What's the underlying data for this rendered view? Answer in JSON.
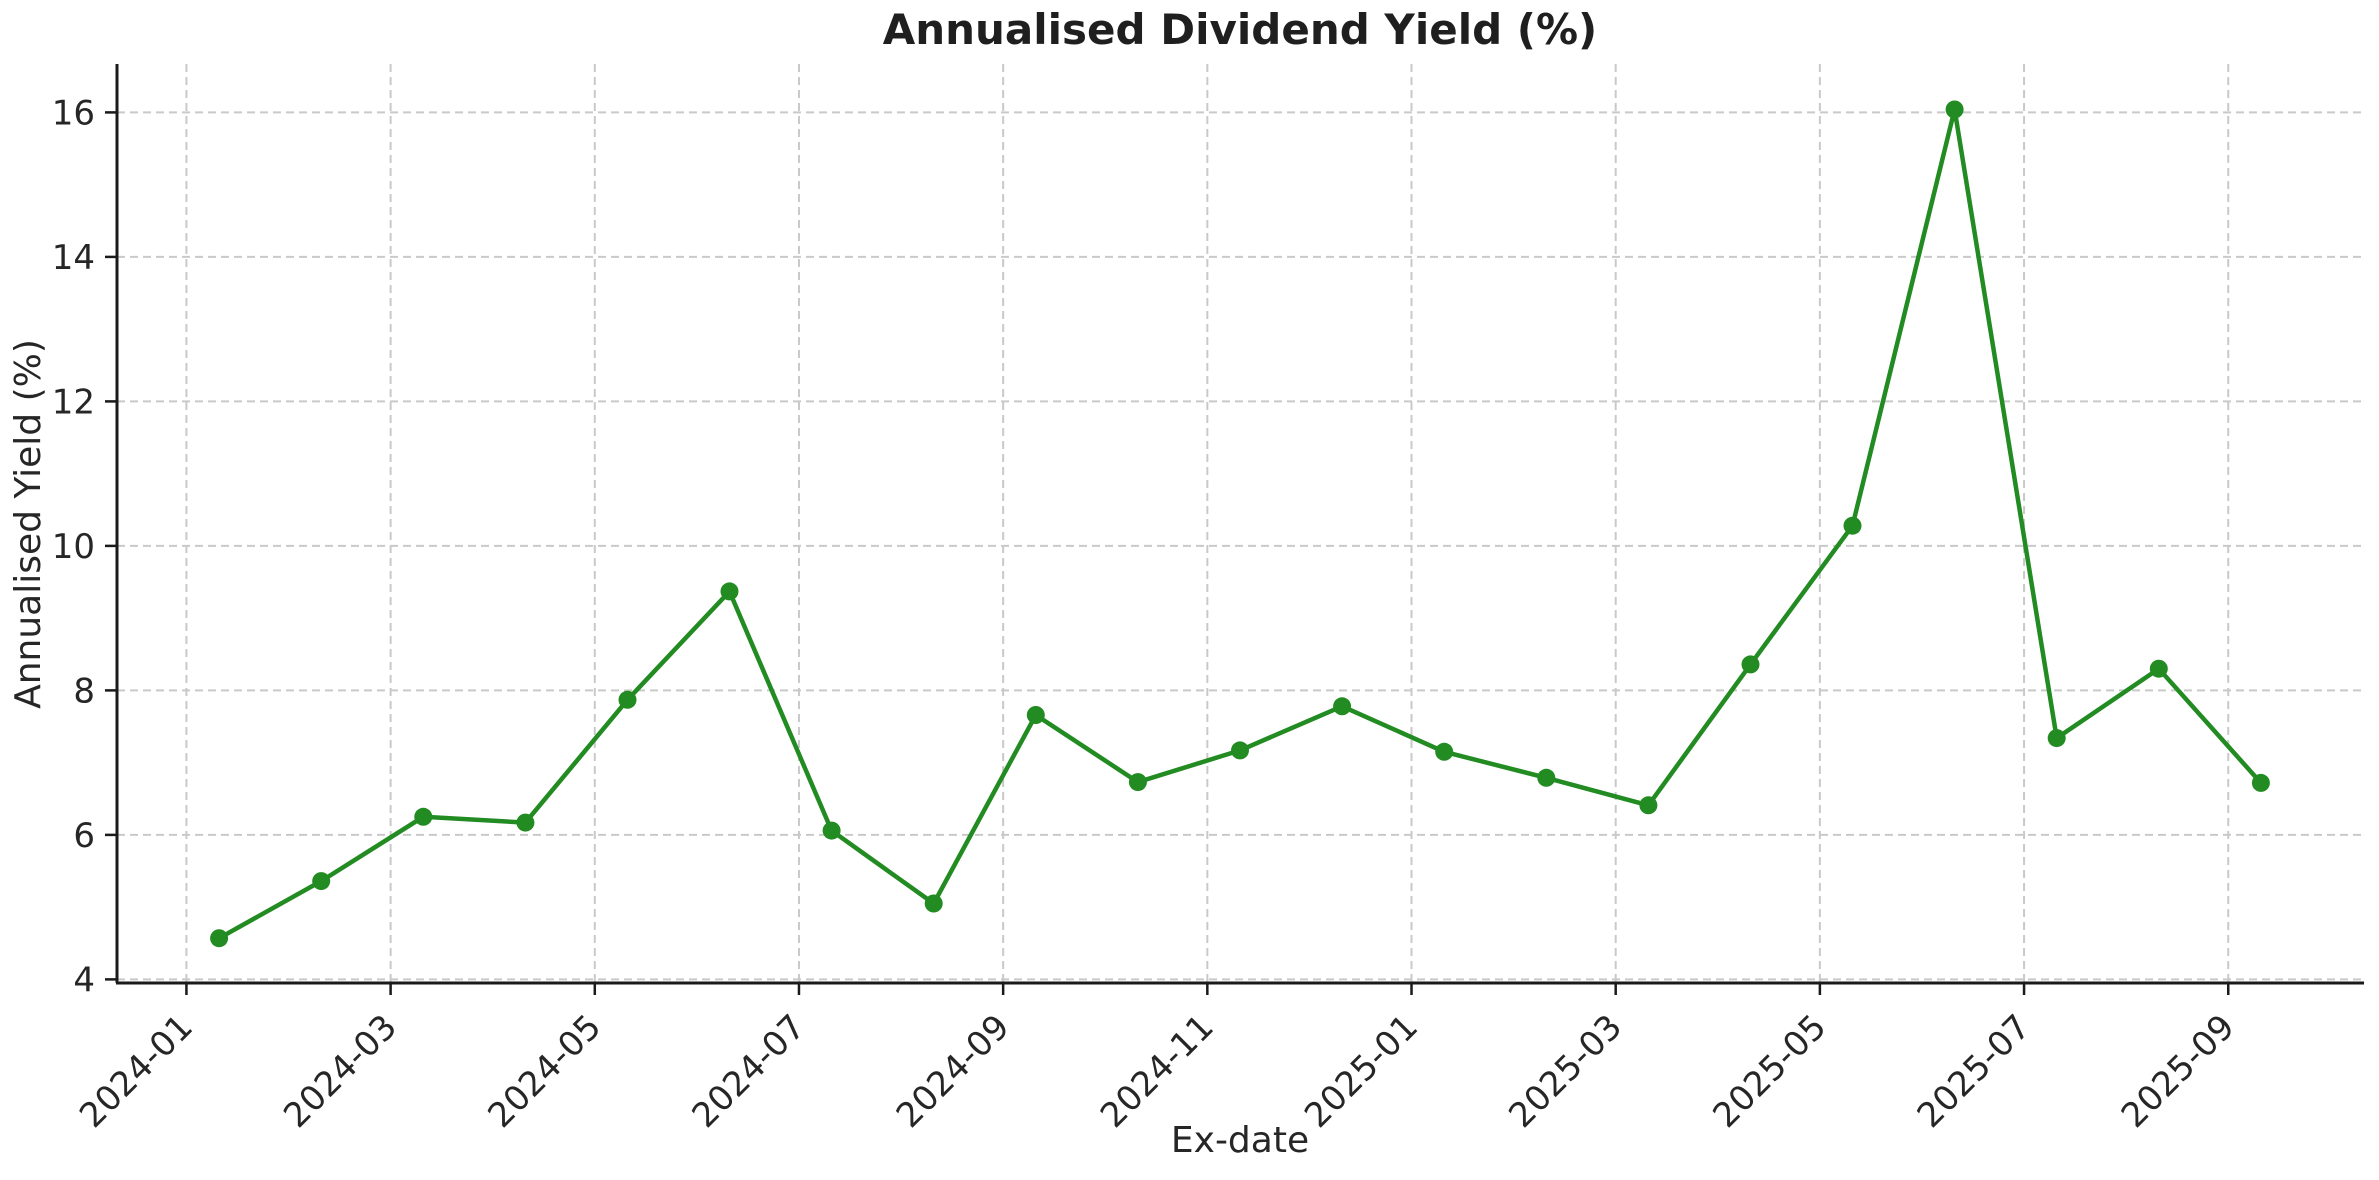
{
  "chart_data": {
    "type": "line",
    "title": "Annualised Dividend Yield (%)",
    "xlabel": "Ex-date",
    "ylabel": "Annualised Yield (%)",
    "x": [
      "2024-01",
      "2024-02",
      "2024-03",
      "2024-04",
      "2024-05",
      "2024-06",
      "2024-07",
      "2024-08",
      "2024-09",
      "2024-10",
      "2024-11",
      "2024-12",
      "2025-01",
      "2025-02",
      "2025-03",
      "2025-04",
      "2025-05",
      "2025-06",
      "2025-07",
      "2025-08",
      "2025-09"
    ],
    "series": [
      {
        "name": "Annualised Yield",
        "values": [
          4.57,
          5.36,
          6.25,
          6.17,
          7.87,
          9.37,
          6.06,
          5.05,
          7.66,
          6.73,
          7.17,
          7.78,
          7.15,
          6.79,
          6.41,
          8.36,
          10.28,
          16.04,
          7.34,
          8.3,
          6.72
        ],
        "color": "#228B22",
        "marker": "circle"
      }
    ],
    "x_tick_labels": [
      "2024-01",
      "2024-03",
      "2024-05",
      "2024-07",
      "2024-09",
      "2024-11",
      "2025-01",
      "2025-03",
      "2025-05",
      "2025-07",
      "2025-09"
    ],
    "x_tick_month_indices": [
      0,
      2,
      4,
      6,
      8,
      10,
      12,
      14,
      16,
      18,
      20
    ],
    "y_ticks": [
      4,
      6,
      8,
      10,
      12,
      14,
      16
    ],
    "y_tick_labels": [
      "4",
      "6",
      "8",
      "10",
      "12",
      "14",
      "16"
    ],
    "ylim": [
      3.95,
      16.67
    ],
    "x_domain_months": [
      -0.68,
      21.32
    ],
    "x_point_offset_months": 0.32,
    "x_tick_rotation_deg": 45,
    "grid": true,
    "grid_style": "dashed",
    "legend": false,
    "colors": {
      "line": "#228B22",
      "grid": "#c9c9c9",
      "axis": "#1a1a1a",
      "text": "#262626",
      "background": "#ffffff"
    }
  }
}
